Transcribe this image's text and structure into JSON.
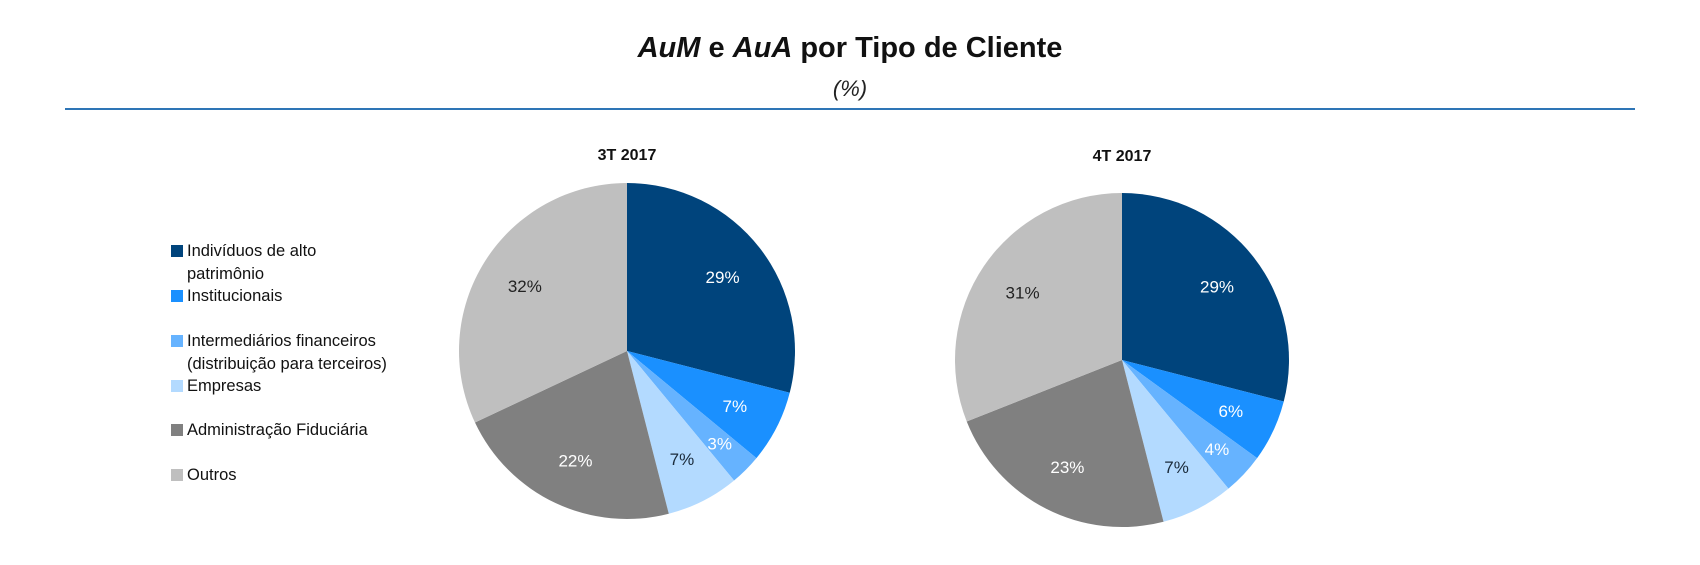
{
  "header": {
    "title_part1": "AuM",
    "title_part2": " e ",
    "title_part3": "AuA",
    "title_part4": " por Tipo de Cliente",
    "subtitle": "(%)",
    "rule_color": "#2e75b6"
  },
  "legend": {
    "items": [
      {
        "label": "Indivíduos de alto\npatrimônio",
        "color": "#00447c"
      },
      {
        "label": "Institucionais",
        "color": "#1a90ff"
      },
      {
        "label": "Intermediários financeiros\n(distribuição para terceiros)",
        "color": "#66b3ff"
      },
      {
        "label": "Empresas",
        "color": "#b3daff"
      },
      {
        "label": "Administração Fiduciária",
        "color": "#808080"
      },
      {
        "label": "Outros",
        "color": "#bfbfbf"
      }
    ]
  },
  "chart_data": [
    {
      "type": "pie",
      "title": "3T 2017",
      "categories": [
        "Indivíduos de alto patrimônio",
        "Institucionais",
        "Intermediários financeiros (distribuição para terceiros)",
        "Empresas",
        "Administração Fiduciária",
        "Outros"
      ],
      "values": [
        29,
        7,
        3,
        7,
        22,
        32
      ],
      "labels": [
        "29%",
        "7%",
        "3%",
        "7%",
        "22%",
        "32%"
      ],
      "colors": [
        "#00447c",
        "#1a90ff",
        "#66b3ff",
        "#b3daff",
        "#808080",
        "#bfbfbf"
      ],
      "label_colors": [
        "#ffffff",
        "#ffffff",
        "#ffffff",
        "#1a2a3a",
        "#ffffff",
        "#222222"
      ],
      "start_angle_deg": 0,
      "direction": "clockwise",
      "legend_position": "left"
    },
    {
      "type": "pie",
      "title": "4T 2017",
      "categories": [
        "Indivíduos de alto patrimônio",
        "Institucionais",
        "Intermediários financeiros (distribuição para terceiros)",
        "Empresas",
        "Administração Fiduciária",
        "Outros"
      ],
      "values": [
        29,
        6,
        4,
        7,
        23,
        31
      ],
      "labels": [
        "29%",
        "6%",
        "4%",
        "7%",
        "23%",
        "31%"
      ],
      "colors": [
        "#00447c",
        "#1a90ff",
        "#66b3ff",
        "#b3daff",
        "#808080",
        "#bfbfbf"
      ],
      "label_colors": [
        "#ffffff",
        "#ffffff",
        "#ffffff",
        "#1a2a3a",
        "#ffffff",
        "#222222"
      ],
      "start_angle_deg": 0,
      "direction": "clockwise",
      "legend_position": "left"
    }
  ]
}
